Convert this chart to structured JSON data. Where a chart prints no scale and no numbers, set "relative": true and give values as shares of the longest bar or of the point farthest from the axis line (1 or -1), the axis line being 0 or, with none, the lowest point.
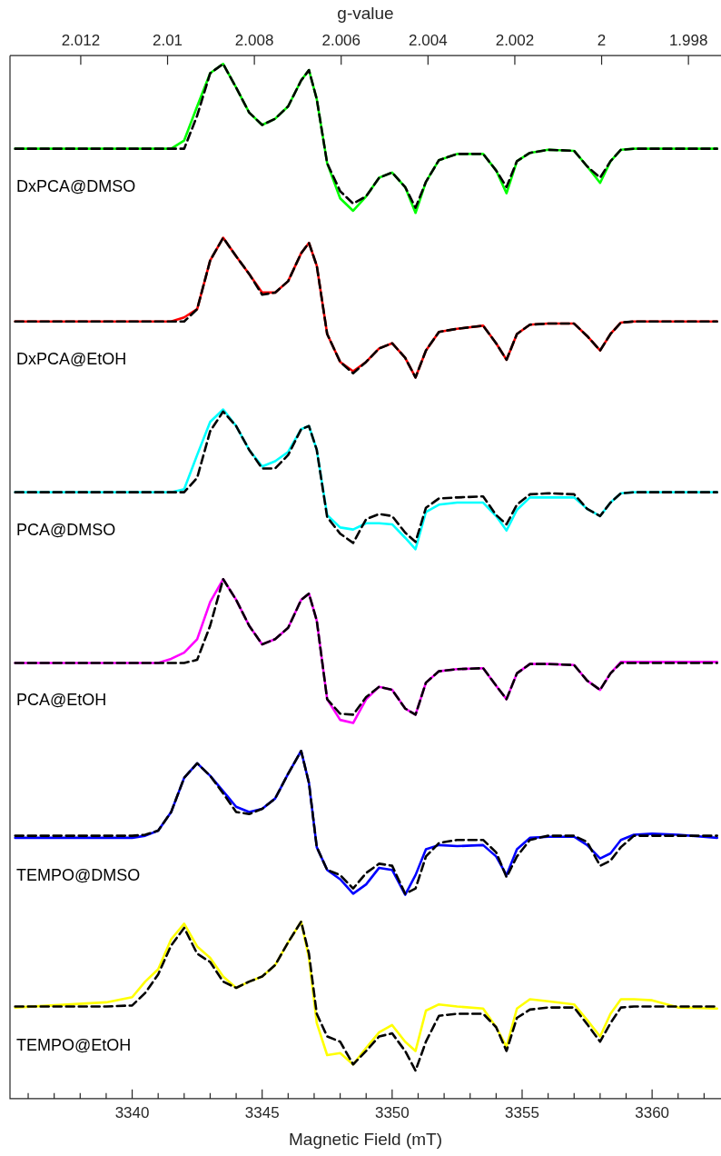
{
  "chart_data": {
    "type": "line",
    "relative": true,
    "xlabel": "Magnetic Field (mT)",
    "x2label": "g-value",
    "marker": "none",
    "x": [
      3335.5,
      3339,
      3340,
      3340.5,
      3341,
      3341.5,
      3342,
      3342.5,
      3343,
      3343.5,
      3344,
      3344.5,
      3345,
      3345.5,
      3346,
      3346.5,
      3346.8,
      3347.1,
      3347.5,
      3348,
      3348.5,
      3349,
      3349.5,
      3350,
      3350.5,
      3350.9,
      3351.3,
      3351.8,
      3352.5,
      3353.5,
      3354,
      3354.4,
      3354.8,
      3355.3,
      3356,
      3357,
      3357.5,
      3358,
      3358.4,
      3358.8,
      3359.3,
      3360,
      3361,
      3362.5
    ],
    "xlim": [
      3335.3,
      3362.65
    ],
    "xticks": [
      {
        "value": 3336,
        "label": null
      },
      {
        "value": 3337,
        "label": null
      },
      {
        "value": 3338,
        "label": null
      },
      {
        "value": 3339,
        "label": null
      },
      3340,
      {
        "value": 3341,
        "label": null
      },
      {
        "value": 3342,
        "label": null
      },
      {
        "value": 3343,
        "label": null
      },
      {
        "value": 3344,
        "label": null
      },
      3345,
      {
        "value": 3346,
        "label": null
      },
      {
        "value": 3347,
        "label": null
      },
      {
        "value": 3348,
        "label": null
      },
      {
        "value": 3349,
        "label": null
      },
      3350,
      {
        "value": 3351,
        "label": null
      },
      {
        "value": 3352,
        "label": null
      },
      {
        "value": 3353,
        "label": null
      },
      {
        "value": 3354,
        "label": null
      },
      3355,
      {
        "value": 3356,
        "label": null
      },
      {
        "value": 3357,
        "label": null
      },
      {
        "value": 3358,
        "label": null
      },
      {
        "value": 3359,
        "label": null
      },
      3360,
      {
        "value": 3361,
        "label": null
      },
      {
        "value": 3362,
        "label": null
      }
    ],
    "x2lim": [
      2.01363,
      1.99725
    ],
    "x2ticks": [
      2.012,
      2.01,
      2.008,
      2.006,
      2.004,
      2.002,
      2,
      1.998
    ],
    "series": [
      {
        "name": "DxPCA@DMSO",
        "color": "#00ff00",
        "values": [
          0.918,
          0.918,
          0.918,
          0.918,
          0.918,
          0.918,
          0.926,
          0.959,
          0.991,
          1.0,
          0.977,
          0.953,
          0.941,
          0.947,
          0.959,
          0.984,
          0.994,
          0.966,
          0.904,
          0.87,
          0.858,
          0.872,
          0.89,
          0.895,
          0.881,
          0.856,
          0.886,
          0.907,
          0.913,
          0.913,
          0.897,
          0.875,
          0.906,
          0.914,
          0.917,
          0.916,
          0.901,
          0.885,
          0.906,
          0.917,
          0.918,
          0.918,
          0.918,
          0.918
        ]
      },
      {
        "color": "#000000",
        "line_style": "dashed",
        "values": [
          0.918,
          0.918,
          0.918,
          0.918,
          0.918,
          0.918,
          0.918,
          0.95,
          0.991,
          1.0,
          0.977,
          0.953,
          0.941,
          0.947,
          0.959,
          0.984,
          0.994,
          0.966,
          0.904,
          0.877,
          0.865,
          0.872,
          0.89,
          0.895,
          0.881,
          0.861,
          0.886,
          0.907,
          0.913,
          0.913,
          0.897,
          0.881,
          0.906,
          0.914,
          0.917,
          0.916,
          0.901,
          0.89,
          0.906,
          0.917,
          0.918,
          0.918,
          0.918,
          0.918
        ]
      },
      {
        "name": "DxPCA@EtOH",
        "color": "#ff0000",
        "values": [
          0.751,
          0.751,
          0.751,
          0.751,
          0.751,
          0.751,
          0.755,
          0.763,
          0.81,
          0.832,
          0.814,
          0.797,
          0.779,
          0.779,
          0.79,
          0.817,
          0.827,
          0.805,
          0.739,
          0.712,
          0.703,
          0.712,
          0.725,
          0.73,
          0.716,
          0.697,
          0.723,
          0.741,
          0.744,
          0.747,
          0.73,
          0.714,
          0.739,
          0.748,
          0.749,
          0.749,
          0.737,
          0.723,
          0.739,
          0.75,
          0.751,
          0.751,
          0.751,
          0.751
        ]
      },
      {
        "color": "#000000",
        "line_style": "dashed",
        "values": [
          0.751,
          0.751,
          0.751,
          0.751,
          0.751,
          0.751,
          0.751,
          0.763,
          0.81,
          0.832,
          0.814,
          0.797,
          0.777,
          0.779,
          0.79,
          0.817,
          0.827,
          0.805,
          0.739,
          0.712,
          0.701,
          0.712,
          0.725,
          0.73,
          0.716,
          0.697,
          0.723,
          0.741,
          0.744,
          0.747,
          0.73,
          0.714,
          0.739,
          0.748,
          0.749,
          0.749,
          0.737,
          0.723,
          0.739,
          0.75,
          0.751,
          0.751,
          0.751,
          0.751
        ]
      },
      {
        "name": "PCA@DMSO",
        "color": "#00ffff",
        "values": [
          0.586,
          0.586,
          0.586,
          0.586,
          0.586,
          0.586,
          0.589,
          0.622,
          0.654,
          0.666,
          0.65,
          0.627,
          0.611,
          0.616,
          0.625,
          0.647,
          0.65,
          0.627,
          0.564,
          0.552,
          0.55,
          0.556,
          0.556,
          0.555,
          0.542,
          0.531,
          0.567,
          0.574,
          0.576,
          0.576,
          0.563,
          0.549,
          0.569,
          0.581,
          0.581,
          0.581,
          0.57,
          0.563,
          0.576,
          0.585,
          0.586,
          0.586,
          0.586,
          0.586
        ]
      },
      {
        "color": "#000000",
        "line_style": "dashed",
        "values": [
          0.586,
          0.586,
          0.586,
          0.586,
          0.586,
          0.586,
          0.586,
          0.6,
          0.645,
          0.664,
          0.65,
          0.627,
          0.609,
          0.609,
          0.622,
          0.647,
          0.65,
          0.627,
          0.562,
          0.546,
          0.537,
          0.56,
          0.565,
          0.563,
          0.547,
          0.538,
          0.571,
          0.58,
          0.581,
          0.582,
          0.564,
          0.555,
          0.574,
          0.584,
          0.585,
          0.584,
          0.57,
          0.563,
          0.576,
          0.585,
          0.586,
          0.586,
          0.586,
          0.586
        ]
      },
      {
        "name": "PCA@EtOH",
        "color": "#ff00ff",
        "values": [
          0.421,
          0.421,
          0.421,
          0.421,
          0.421,
          0.425,
          0.431,
          0.444,
          0.48,
          0.502,
          0.482,
          0.457,
          0.439,
          0.444,
          0.455,
          0.482,
          0.488,
          0.462,
          0.386,
          0.366,
          0.363,
          0.386,
          0.398,
          0.395,
          0.377,
          0.371,
          0.402,
          0.413,
          0.415,
          0.416,
          0.399,
          0.386,
          0.411,
          0.42,
          0.42,
          0.419,
          0.404,
          0.395,
          0.411,
          0.422,
          0.422,
          0.422,
          0.422,
          0.422
        ]
      },
      {
        "color": "#000000",
        "line_style": "dashed",
        "values": [
          0.421,
          0.421,
          0.421,
          0.421,
          0.421,
          0.421,
          0.421,
          0.424,
          0.457,
          0.502,
          0.482,
          0.457,
          0.439,
          0.444,
          0.455,
          0.482,
          0.488,
          0.462,
          0.386,
          0.372,
          0.371,
          0.388,
          0.398,
          0.395,
          0.377,
          0.371,
          0.402,
          0.413,
          0.415,
          0.416,
          0.399,
          0.386,
          0.411,
          0.42,
          0.42,
          0.419,
          0.404,
          0.395,
          0.411,
          0.421,
          0.421,
          0.421,
          0.421,
          0.421
        ]
      },
      {
        "name": "TEMPO@DMSO",
        "color": "#0000ff",
        "values": [
          0.252,
          0.252,
          0.252,
          0.254,
          0.259,
          0.277,
          0.31,
          0.324,
          0.312,
          0.297,
          0.282,
          0.277,
          0.28,
          0.29,
          0.314,
          0.336,
          0.305,
          0.243,
          0.221,
          0.212,
          0.198,
          0.207,
          0.223,
          0.221,
          0.197,
          0.216,
          0.241,
          0.245,
          0.244,
          0.245,
          0.234,
          0.216,
          0.241,
          0.252,
          0.253,
          0.253,
          0.245,
          0.232,
          0.237,
          0.25,
          0.255,
          0.256,
          0.255,
          0.252
        ]
      },
      {
        "color": "#000000",
        "line_style": "dashed",
        "values": [
          0.254,
          0.254,
          0.254,
          0.255,
          0.259,
          0.277,
          0.31,
          0.324,
          0.312,
          0.295,
          0.277,
          0.275,
          0.28,
          0.29,
          0.314,
          0.336,
          0.305,
          0.243,
          0.221,
          0.216,
          0.203,
          0.218,
          0.227,
          0.225,
          0.198,
          0.203,
          0.234,
          0.247,
          0.25,
          0.25,
          0.238,
          0.214,
          0.234,
          0.25,
          0.254,
          0.254,
          0.248,
          0.225,
          0.23,
          0.243,
          0.254,
          0.254,
          0.254,
          0.254
        ]
      },
      {
        "name": "TEMPO@EtOH",
        "color": "#ffff00",
        "values": [
          0.088,
          0.093,
          0.098,
          0.113,
          0.125,
          0.154,
          0.169,
          0.147,
          0.136,
          0.118,
          0.107,
          0.113,
          0.118,
          0.129,
          0.151,
          0.171,
          0.136,
          0.073,
          0.042,
          0.044,
          0.033,
          0.049,
          0.064,
          0.071,
          0.055,
          0.046,
          0.085,
          0.091,
          0.089,
          0.087,
          0.069,
          0.05,
          0.087,
          0.096,
          0.094,
          0.091,
          0.076,
          0.06,
          0.082,
          0.096,
          0.096,
          0.095,
          0.088,
          0.087
        ]
      },
      {
        "color": "#000000",
        "line_style": "dashed",
        "values": [
          0.089,
          0.089,
          0.09,
          0.102,
          0.12,
          0.148,
          0.165,
          0.14,
          0.132,
          0.113,
          0.107,
          0.113,
          0.118,
          0.129,
          0.151,
          0.171,
          0.14,
          0.082,
          0.06,
          0.055,
          0.033,
          0.046,
          0.06,
          0.063,
          0.046,
          0.027,
          0.055,
          0.08,
          0.082,
          0.082,
          0.069,
          0.046,
          0.078,
          0.086,
          0.088,
          0.088,
          0.072,
          0.055,
          0.073,
          0.088,
          0.089,
          0.089,
          0.089,
          0.089
        ]
      }
    ]
  }
}
